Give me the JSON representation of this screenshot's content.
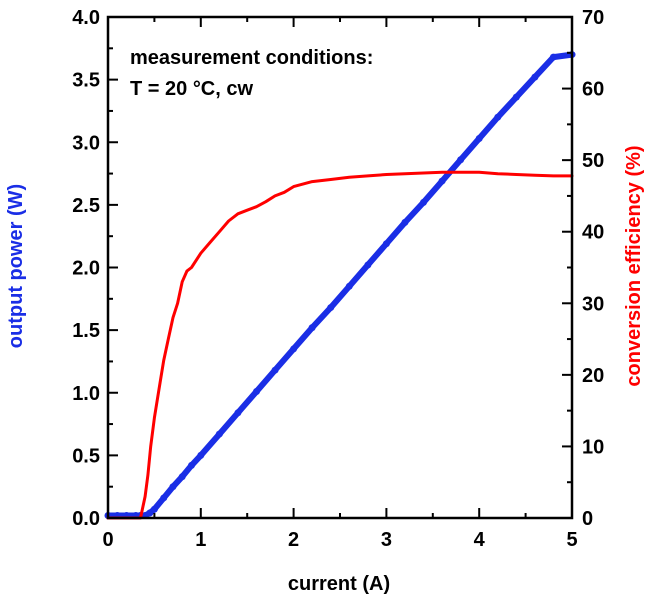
{
  "chart_data": {
    "type": "line",
    "xlabel": "current (A)",
    "ylabel_left": "output power (W)",
    "ylabel_right": "conversion efficiency (%)",
    "xlim": [
      0,
      5
    ],
    "ylim_left": [
      0,
      4.0
    ],
    "ylim_right": [
      0,
      70
    ],
    "x_ticks": [
      "0",
      "1",
      "2",
      "3",
      "4",
      "5"
    ],
    "y_left_ticks": [
      "0.0",
      "0.5",
      "1.0",
      "1.5",
      "2.0",
      "2.5",
      "3.0",
      "3.5",
      "4.0"
    ],
    "y_right_ticks": [
      "0",
      "10",
      "20",
      "30",
      "40",
      "50",
      "60",
      "70"
    ],
    "annotations": [
      "measurement conditions:",
      "T = 20 °C, cw"
    ],
    "grid": false,
    "colors": {
      "power": "#1a2ee6",
      "efficiency": "#ff0000",
      "axis": "#000000"
    },
    "series": [
      {
        "axis": "left",
        "x": [
          0,
          0.1,
          0.2,
          0.3,
          0.35,
          0.4,
          0.45,
          0.5,
          0.6,
          0.7,
          0.8,
          0.9,
          1.0,
          1.2,
          1.4,
          1.6,
          1.8,
          2.0,
          2.2,
          2.4,
          2.6,
          2.8,
          3.0,
          3.2,
          3.4,
          3.6,
          3.8,
          4.0,
          4.2,
          4.4,
          4.6,
          4.8,
          5.0
        ],
        "values": [
          0.02,
          0.02,
          0.02,
          0.02,
          0.02,
          0.02,
          0.04,
          0.07,
          0.16,
          0.25,
          0.33,
          0.42,
          0.5,
          0.67,
          0.84,
          1.01,
          1.18,
          1.35,
          1.52,
          1.68,
          1.85,
          2.02,
          2.19,
          2.36,
          2.52,
          2.69,
          2.86,
          3.03,
          3.2,
          3.36,
          3.52,
          3.68,
          3.7
        ]
      },
      {
        "axis": "right",
        "x": [
          0,
          0.1,
          0.2,
          0.3,
          0.35,
          0.4,
          0.43,
          0.46,
          0.5,
          0.55,
          0.6,
          0.65,
          0.7,
          0.75,
          0.8,
          0.85,
          0.9,
          1.0,
          1.1,
          1.2,
          1.3,
          1.4,
          1.5,
          1.6,
          1.7,
          1.8,
          1.9,
          2.0,
          2.2,
          2.4,
          2.6,
          2.8,
          3.0,
          3.2,
          3.4,
          3.6,
          3.8,
          4.0,
          4.2,
          4.4,
          4.6,
          4.8,
          5.0
        ],
        "values": [
          0,
          0,
          0,
          0,
          0,
          3,
          6,
          10,
          14,
          18,
          22,
          25,
          28,
          30,
          33,
          34.5,
          35,
          37,
          38.5,
          40,
          41.5,
          42.5,
          43,
          43.5,
          44.2,
          45,
          45.5,
          46.3,
          47,
          47.3,
          47.6,
          47.8,
          48,
          48.1,
          48.2,
          48.3,
          48.3,
          48.3,
          48.1,
          48.0,
          47.9,
          47.8,
          47.8
        ]
      }
    ]
  }
}
